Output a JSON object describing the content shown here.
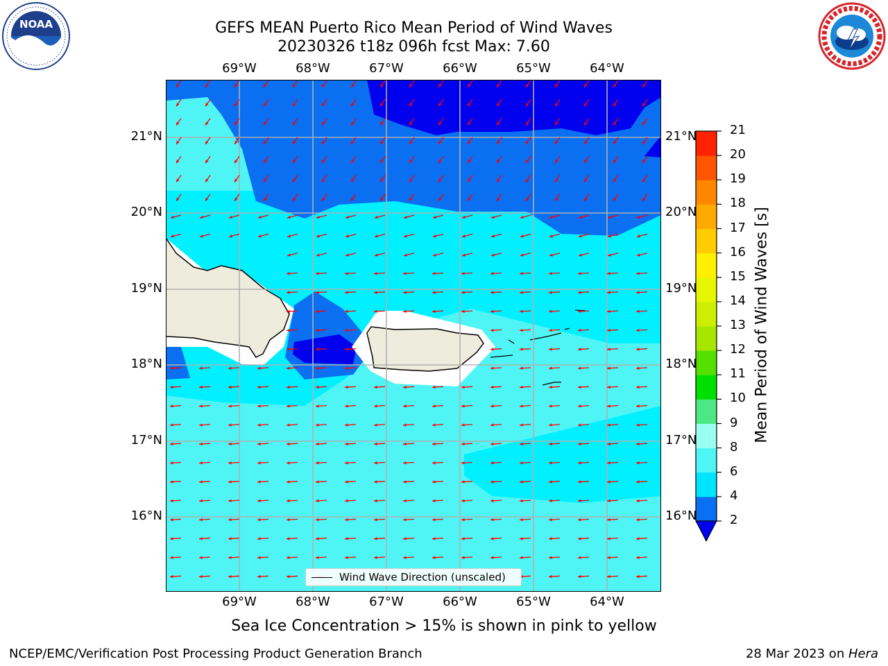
{
  "title_line1": "GEFS MEAN Puerto Rico Mean Period of Wind Waves",
  "title_line2": "20230326 t18z 096h fcst   Max: 7.60",
  "lon_ticks": [
    "69°W",
    "68°W",
    "67°W",
    "66°W",
    "65°W",
    "64°W"
  ],
  "lat_ticks": [
    "21°N",
    "20°N",
    "19°N",
    "18°N",
    "17°N",
    "16°N"
  ],
  "legend_label": "Wind Wave Direction (unscaled)",
  "colorbar": {
    "title": "Mean Period of Wind Waves [s]",
    "ticks": [
      "2",
      "4",
      "6",
      "8",
      "9",
      "10",
      "11",
      "12",
      "13",
      "14",
      "15",
      "16",
      "17",
      "18",
      "19",
      "20",
      "21"
    ],
    "colors": [
      "#0a6ff0",
      "#00e5ff",
      "#4df5f5",
      "#99ffee",
      "#4de885",
      "#00e000",
      "#55e000",
      "#a6e600",
      "#ccee00",
      "#e6f500",
      "#fff000",
      "#ffcc00",
      "#ffaa00",
      "#ff8800",
      "#ff5500",
      "#ff2200"
    ],
    "under_color": "#0000ee"
  },
  "note": "Sea Ice Concentration > 15% is shown in pink to yellow",
  "footer_left": "NCEP/EMC/Verification Post Processing Product Generation Branch",
  "footer_right_date": "28 Mar 2023 on ",
  "footer_right_host": "Hera",
  "logos": {
    "noaa": {
      "text": "NOAA",
      "ring": "NATIONAL OCEANIC AND ATMOSPHERIC ADMINISTRATION · U.S. DEPARTMENT OF COMMERCE"
    },
    "nws": {
      "ring": "NATIONAL WEATHER SERVICE"
    }
  },
  "colors": {
    "deep_blue": "#0000ee",
    "blue": "#0a6ff0",
    "cyan": "#00f0ff",
    "light_cyan": "#4ff5f5",
    "land": "#eeecdc",
    "arrow": "#ff0000",
    "grid": "#b0b0b0"
  }
}
